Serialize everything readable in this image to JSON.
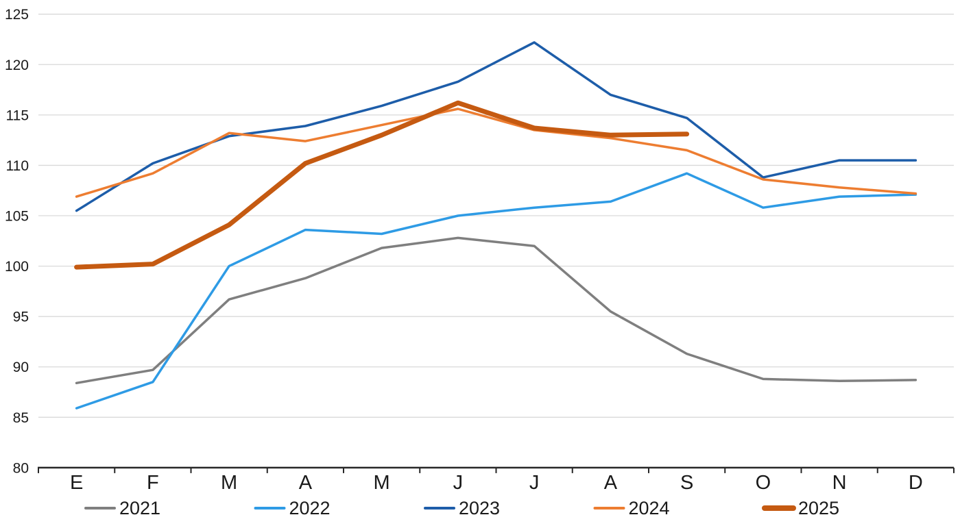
{
  "chart_data": {
    "type": "line",
    "title": "",
    "xlabel": "",
    "ylabel": "",
    "categories": [
      "E",
      "F",
      "M",
      "A",
      "M",
      "J",
      "J",
      "A",
      "S",
      "O",
      "N",
      "D"
    ],
    "y_axis": {
      "min": 80,
      "max": 125,
      "step": 5,
      "tick_labels": [
        "80",
        "85",
        "90",
        "95",
        "100",
        "105",
        "110",
        "115",
        "120",
        "125"
      ]
    },
    "grid": true,
    "legend_position": "bottom",
    "colors": {
      "gridline": "#D9D9D9",
      "axis_line": "#262626",
      "tick_mark": "#262626",
      "label_text": "#1a1a1a"
    },
    "series": [
      {
        "name": "2021",
        "color": "#7F7F7F",
        "stroke_width": 3.5,
        "values": [
          88.4,
          89.7,
          96.7,
          98.8,
          101.8,
          102.8,
          102.0,
          95.5,
          91.3,
          88.8,
          88.6,
          88.7
        ]
      },
      {
        "name": "2022",
        "color": "#2E9BE5",
        "stroke_width": 3.5,
        "values": [
          85.9,
          88.5,
          100.0,
          103.6,
          103.2,
          105.0,
          105.8,
          106.4,
          109.2,
          105.8,
          106.9,
          107.1
        ]
      },
      {
        "name": "2023",
        "color": "#1D5DA9",
        "stroke_width": 3.5,
        "values": [
          105.5,
          110.2,
          112.9,
          113.9,
          115.9,
          118.3,
          122.2,
          117.0,
          114.7,
          108.8,
          110.5,
          110.5
        ]
      },
      {
        "name": "2024",
        "color": "#ED7D31",
        "stroke_width": 3.5,
        "values": [
          106.9,
          109.2,
          113.2,
          112.4,
          114.0,
          115.6,
          113.5,
          112.7,
          111.5,
          108.6,
          107.8,
          107.2
        ]
      },
      {
        "name": "2025",
        "color": "#C55A11",
        "stroke_width": 7,
        "values": [
          99.9,
          100.2,
          104.1,
          110.2,
          113.0,
          116.2,
          113.7,
          113.0,
          113.1
        ]
      }
    ]
  }
}
